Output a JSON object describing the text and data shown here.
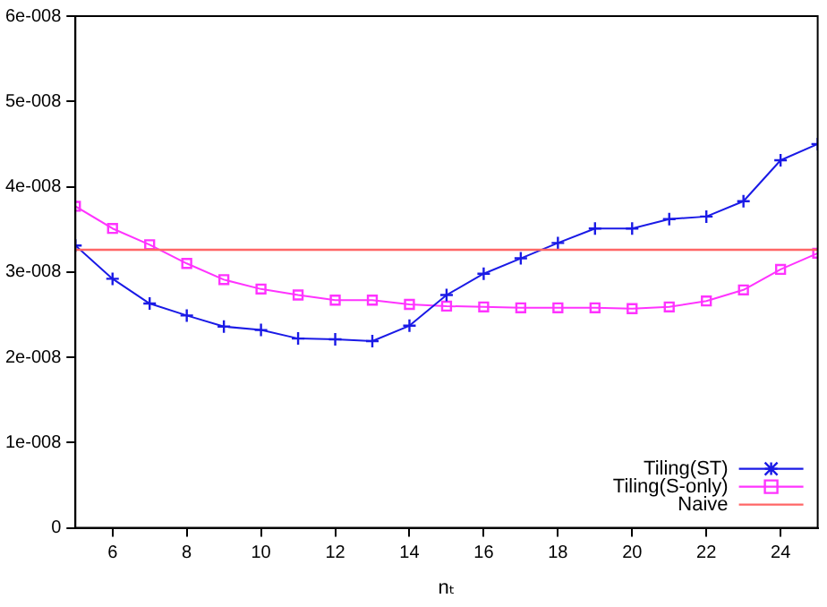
{
  "chart_data": {
    "type": "line",
    "xlabel": "nₜ",
    "x": [
      5,
      6,
      7,
      8,
      9,
      10,
      11,
      12,
      13,
      14,
      15,
      16,
      17,
      18,
      19,
      20,
      21,
      22,
      23,
      24,
      25
    ],
    "series": [
      {
        "name": "Tiling(ST)",
        "color": "#1a1ae6",
        "marker": "cross",
        "values": [
          3.31e-08,
          2.92e-08,
          2.63e-08,
          2.49e-08,
          2.36e-08,
          2.32e-08,
          2.22e-08,
          2.21e-08,
          2.19e-08,
          2.37e-08,
          2.73e-08,
          2.98e-08,
          3.16e-08,
          3.34e-08,
          3.51e-08,
          3.51e-08,
          3.62e-08,
          3.65e-08,
          3.83e-08,
          4.31e-08,
          4.5e-08
        ]
      },
      {
        "name": "Tiling(S-only)",
        "color": "#ff33ff",
        "marker": "square",
        "values": [
          3.77e-08,
          3.51e-08,
          3.32e-08,
          3.1e-08,
          2.91e-08,
          2.8e-08,
          2.73e-08,
          2.67e-08,
          2.67e-08,
          2.62e-08,
          2.6e-08,
          2.59e-08,
          2.58e-08,
          2.58e-08,
          2.58e-08,
          2.57e-08,
          2.59e-08,
          2.66e-08,
          2.79e-08,
          3.03e-08,
          3.22e-08
        ]
      }
    ],
    "ref_lines": [
      {
        "axis": "y",
        "value": 3.26e-08,
        "label": "Naive",
        "color": "#ff6666"
      }
    ],
    "xlim": [
      5,
      25
    ],
    "xticks": [
      6,
      8,
      10,
      12,
      14,
      16,
      18,
      20,
      22,
      24
    ],
    "ylim": [
      0,
      6e-08
    ],
    "yticks": [
      {
        "value": 0,
        "label": "0"
      },
      {
        "value": 1e-08,
        "label": "1e-008"
      },
      {
        "value": 2e-08,
        "label": "2e-008"
      },
      {
        "value": 3e-08,
        "label": "3e-008"
      },
      {
        "value": 4e-08,
        "label": "4e-008"
      },
      {
        "value": 5e-08,
        "label": "5e-008"
      },
      {
        "value": 6e-08,
        "label": "6e-008"
      }
    ],
    "grid": false,
    "legend": "bottom right"
  }
}
